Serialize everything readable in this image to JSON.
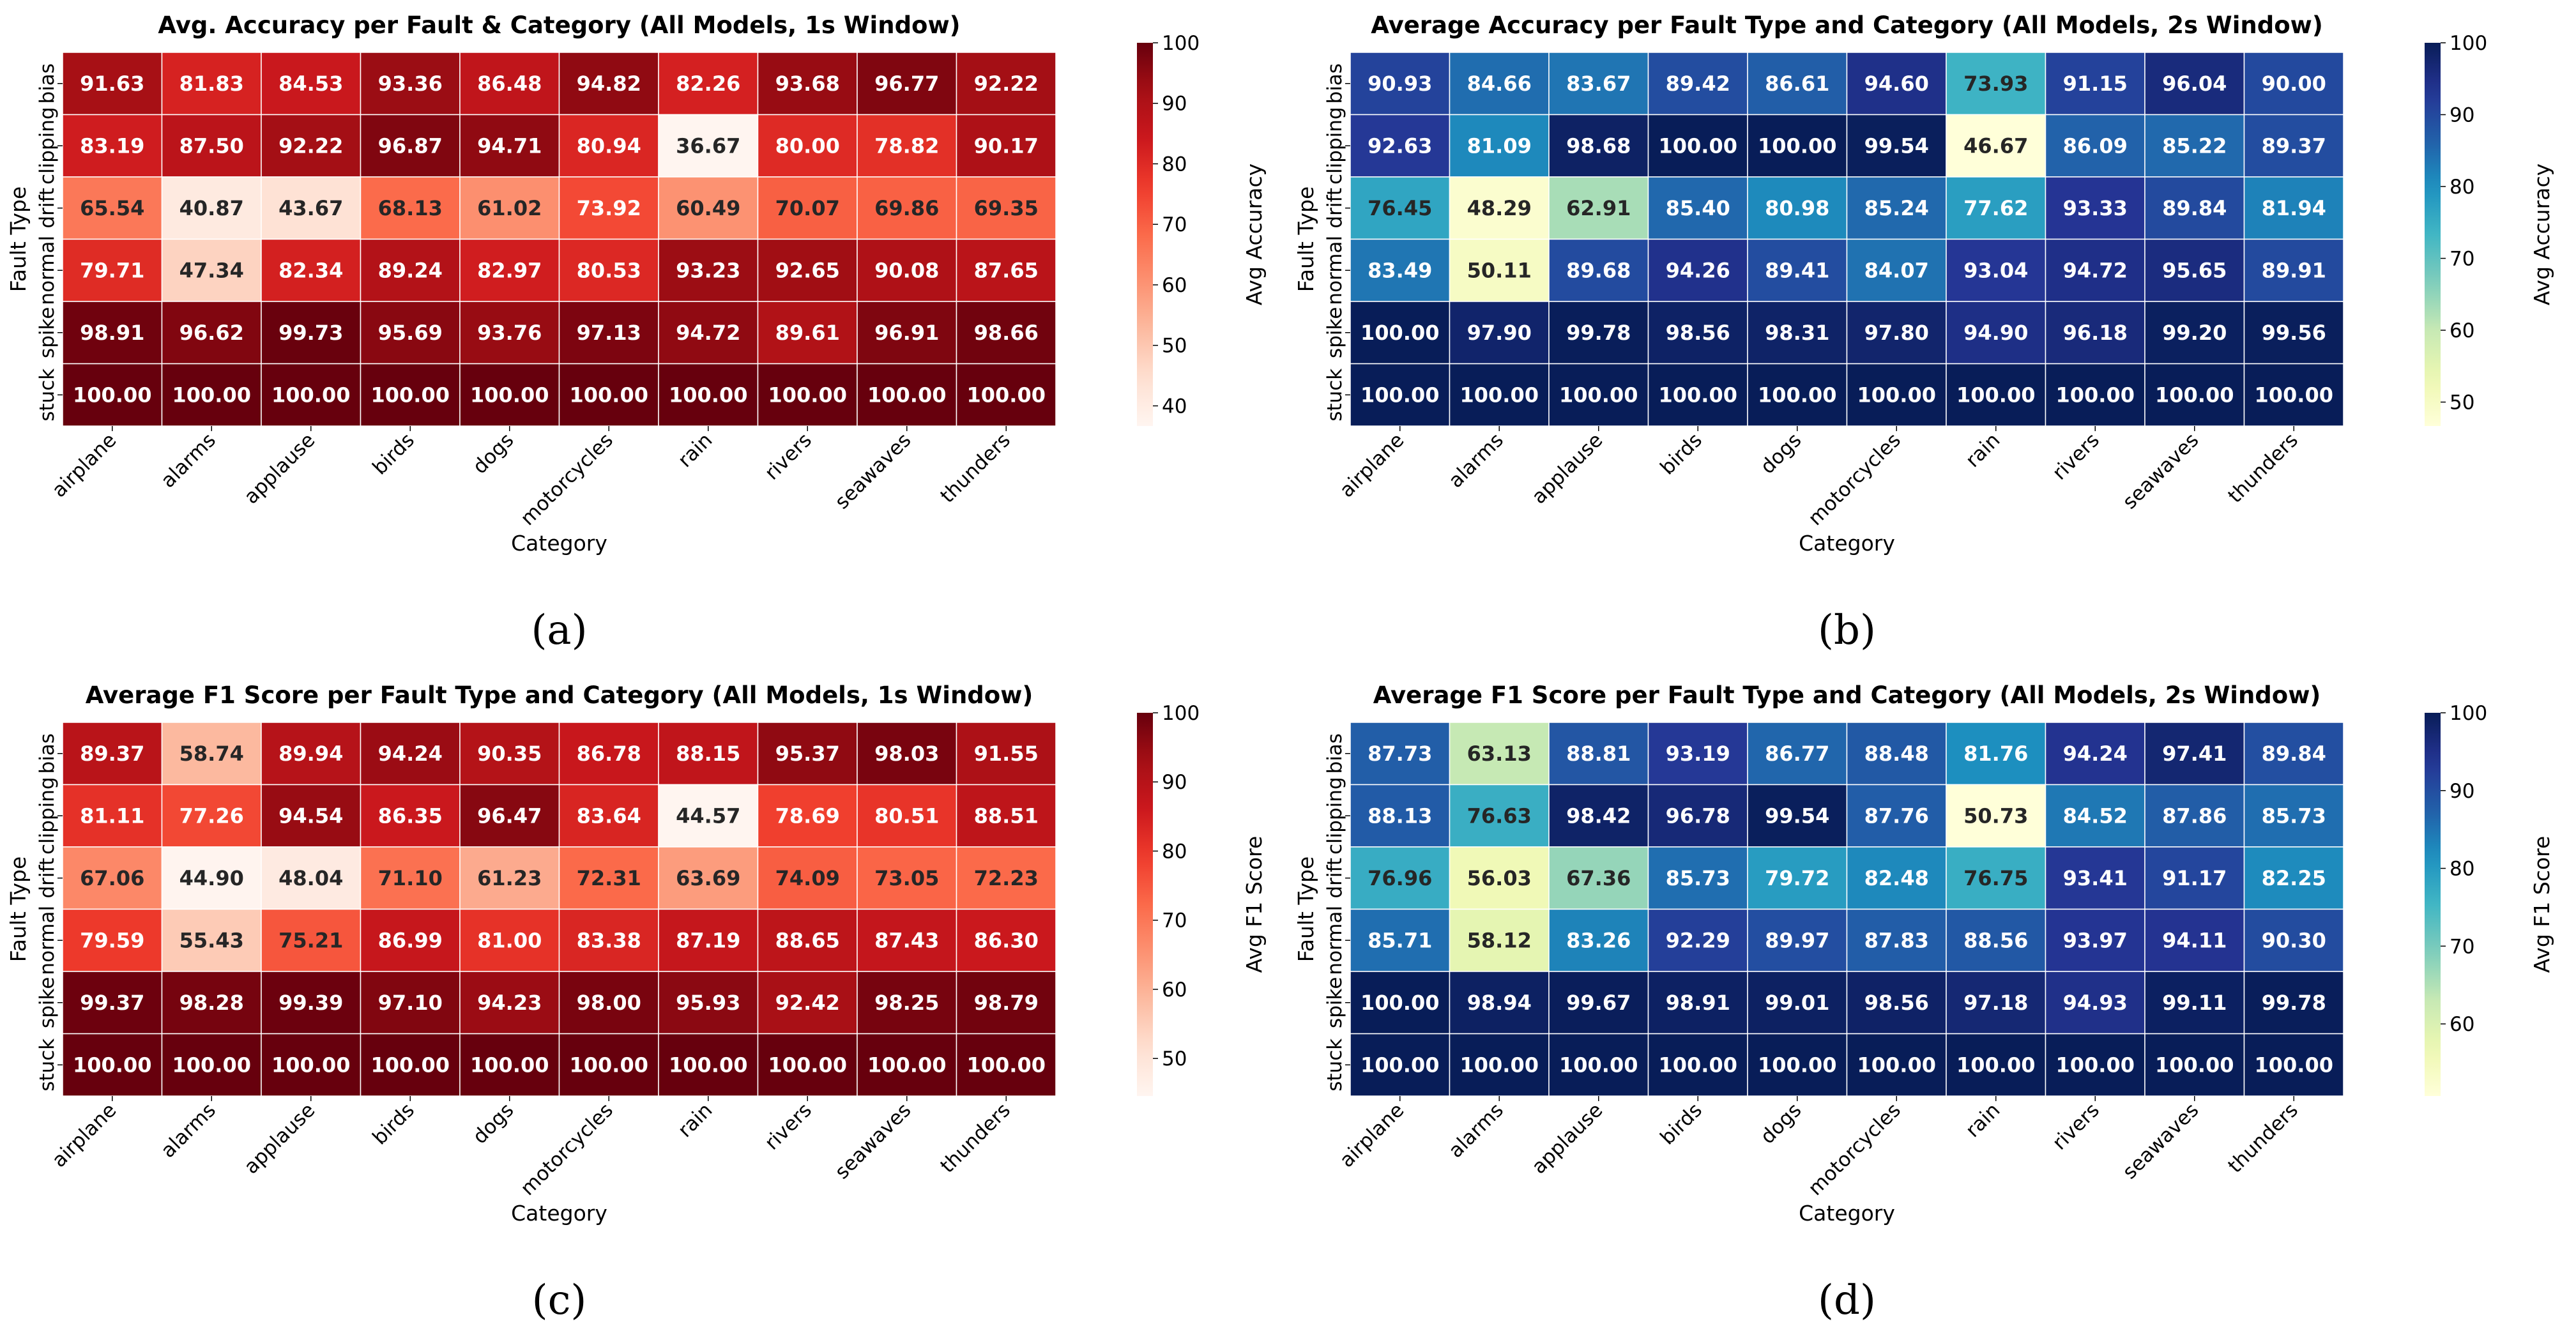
{
  "chart_data": [
    {
      "type": "heatmap",
      "panel_label": "(a)",
      "title": "Avg. Accuracy per Fault & Category (All Models, 1s Window)",
      "xlabel": "Category",
      "ylabel": "Fault Type",
      "colorbar_label": "Avg Accuracy",
      "colormap": "Reds",
      "vmin": 36.67,
      "vmax": 100,
      "colorbar_ticks": [
        40,
        50,
        60,
        70,
        80,
        90,
        100
      ],
      "x": [
        "airplane",
        "alarms",
        "applause",
        "birds",
        "dogs",
        "motorcycles",
        "rain",
        "rivers",
        "seawaves",
        "thunders"
      ],
      "y": [
        "bias",
        "clipping",
        "drift",
        "normal",
        "spike",
        "stuck"
      ],
      "values": [
        [
          91.63,
          81.83,
          84.53,
          93.36,
          86.48,
          94.82,
          82.26,
          93.68,
          96.77,
          92.22
        ],
        [
          83.19,
          87.5,
          92.22,
          96.87,
          94.71,
          80.94,
          36.67,
          80.0,
          78.82,
          90.17
        ],
        [
          65.54,
          40.87,
          43.67,
          68.13,
          61.02,
          73.92,
          60.49,
          70.07,
          69.86,
          69.35
        ],
        [
          79.71,
          47.34,
          82.34,
          89.24,
          82.97,
          80.53,
          93.23,
          92.65,
          90.08,
          87.65
        ],
        [
          98.91,
          96.62,
          99.73,
          95.69,
          93.76,
          97.13,
          94.72,
          89.61,
          96.91,
          98.66
        ],
        [
          100.0,
          100.0,
          100.0,
          100.0,
          100.0,
          100.0,
          100.0,
          100.0,
          100.0,
          100.0
        ]
      ]
    },
    {
      "type": "heatmap",
      "panel_label": "(b)",
      "title": "Average Accuracy per Fault Type and Category (All Models, 2s Window)",
      "xlabel": "Category",
      "ylabel": "Fault Type",
      "colorbar_label": "Avg Accuracy",
      "colormap": "YlGnBu",
      "vmin": 46.67,
      "vmax": 100,
      "colorbar_ticks": [
        50,
        60,
        70,
        80,
        90,
        100
      ],
      "x": [
        "airplane",
        "alarms",
        "applause",
        "birds",
        "dogs",
        "motorcycles",
        "rain",
        "rivers",
        "seawaves",
        "thunders"
      ],
      "y": [
        "bias",
        "clipping",
        "drift",
        "normal",
        "spike",
        "stuck"
      ],
      "values": [
        [
          90.93,
          84.66,
          83.67,
          89.42,
          86.61,
          94.6,
          73.93,
          91.15,
          96.04,
          90.0
        ],
        [
          92.63,
          81.09,
          98.68,
          100.0,
          100.0,
          99.54,
          46.67,
          86.09,
          85.22,
          89.37
        ],
        [
          76.45,
          48.29,
          62.91,
          85.4,
          80.98,
          85.24,
          77.62,
          93.33,
          89.84,
          81.94
        ],
        [
          83.49,
          50.11,
          89.68,
          94.26,
          89.41,
          84.07,
          93.04,
          94.72,
          95.65,
          89.91
        ],
        [
          100.0,
          97.9,
          99.78,
          98.56,
          98.31,
          97.8,
          94.9,
          96.18,
          99.2,
          99.56
        ],
        [
          100.0,
          100.0,
          100.0,
          100.0,
          100.0,
          100.0,
          100.0,
          100.0,
          100.0,
          100.0
        ]
      ]
    },
    {
      "type": "heatmap",
      "panel_label": "(c)",
      "title": "Average F1 Score per Fault Type and Category (All Models, 1s Window)",
      "xlabel": "Category",
      "ylabel": "Fault Type",
      "colorbar_label": "Avg F1 Score",
      "colormap": "Reds",
      "vmin": 44.57,
      "vmax": 100,
      "colorbar_ticks": [
        50,
        60,
        70,
        80,
        90,
        100
      ],
      "x": [
        "airplane",
        "alarms",
        "applause",
        "birds",
        "dogs",
        "motorcycles",
        "rain",
        "rivers",
        "seawaves",
        "thunders"
      ],
      "y": [
        "bias",
        "clipping",
        "drift",
        "normal",
        "spike",
        "stuck"
      ],
      "values": [
        [
          89.37,
          58.74,
          89.94,
          94.24,
          90.35,
          86.78,
          88.15,
          95.37,
          98.03,
          91.55
        ],
        [
          81.11,
          77.26,
          94.54,
          86.35,
          96.47,
          83.64,
          44.57,
          78.69,
          80.51,
          88.51
        ],
        [
          67.06,
          44.9,
          48.04,
          71.1,
          61.23,
          72.31,
          63.69,
          74.09,
          73.05,
          72.23
        ],
        [
          79.59,
          55.43,
          75.21,
          86.99,
          81.0,
          83.38,
          87.19,
          88.65,
          87.43,
          86.3
        ],
        [
          99.37,
          98.28,
          99.39,
          97.1,
          94.23,
          98.0,
          95.93,
          92.42,
          98.25,
          98.79
        ],
        [
          100.0,
          100.0,
          100.0,
          100.0,
          100.0,
          100.0,
          100.0,
          100.0,
          100.0,
          100.0
        ]
      ]
    },
    {
      "type": "heatmap",
      "panel_label": "(d)",
      "title": "Average F1 Score per Fault Type and Category (All Models, 2s Window)",
      "xlabel": "Category",
      "ylabel": "Fault Type",
      "colorbar_label": "Avg F1 Score",
      "colormap": "YlGnBu",
      "vmin": 50.73,
      "vmax": 100,
      "colorbar_ticks": [
        60,
        70,
        80,
        90,
        100
      ],
      "x": [
        "airplane",
        "alarms",
        "applause",
        "birds",
        "dogs",
        "motorcycles",
        "rain",
        "rivers",
        "seawaves",
        "thunders"
      ],
      "y": [
        "bias",
        "clipping",
        "drift",
        "normal",
        "spike",
        "stuck"
      ],
      "values": [
        [
          87.73,
          63.13,
          88.81,
          93.19,
          86.77,
          88.48,
          81.76,
          94.24,
          97.41,
          89.84
        ],
        [
          88.13,
          76.63,
          98.42,
          96.78,
          99.54,
          87.76,
          50.73,
          84.52,
          87.86,
          85.73
        ],
        [
          76.96,
          56.03,
          67.36,
          85.73,
          79.72,
          82.48,
          76.75,
          93.41,
          91.17,
          82.25
        ],
        [
          85.71,
          58.12,
          83.26,
          92.29,
          89.97,
          87.83,
          88.56,
          93.97,
          94.11,
          90.3
        ],
        [
          100.0,
          98.94,
          99.67,
          98.91,
          99.01,
          98.56,
          97.18,
          94.93,
          99.11,
          99.78
        ],
        [
          100.0,
          100.0,
          100.0,
          100.0,
          100.0,
          100.0,
          100.0,
          100.0,
          100.0,
          100.0
        ]
      ]
    }
  ]
}
